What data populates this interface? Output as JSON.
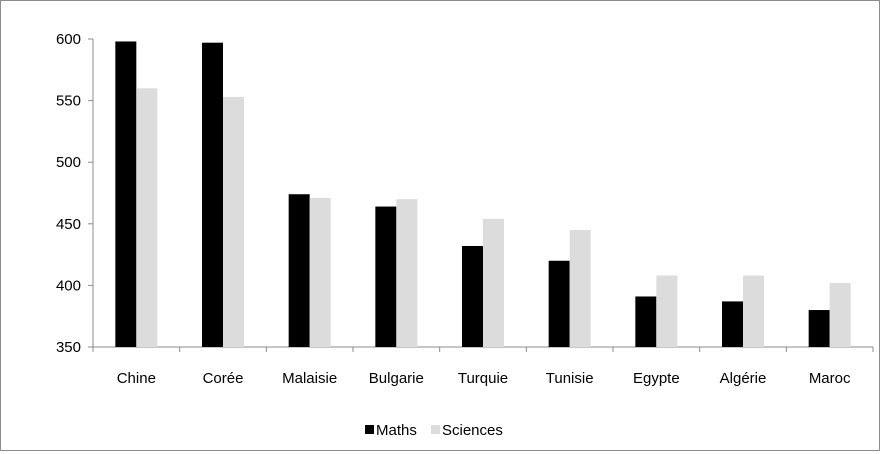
{
  "chart_data": {
    "type": "bar",
    "title": "",
    "xlabel": "",
    "ylabel": "",
    "categories": [
      "Chine",
      "Corée",
      "Malaisie",
      "Bulgarie",
      "Turquie",
      "Tunisie",
      "Egypte",
      "Algérie",
      "Maroc"
    ],
    "series": [
      {
        "name": "Maths",
        "values": [
          598,
          597,
          474,
          464,
          432,
          420,
          391,
          387,
          380
        ],
        "color": "#000000"
      },
      {
        "name": "Sciences",
        "values": [
          560,
          553,
          471,
          470,
          454,
          445,
          408,
          408,
          402
        ],
        "color": "#dcdcdc"
      }
    ],
    "ylim": [
      350,
      600
    ],
    "yticks": [
      "350",
      "400",
      "450",
      "500",
      "550",
      "600"
    ],
    "grid": false,
    "legend_position": "bottom"
  }
}
